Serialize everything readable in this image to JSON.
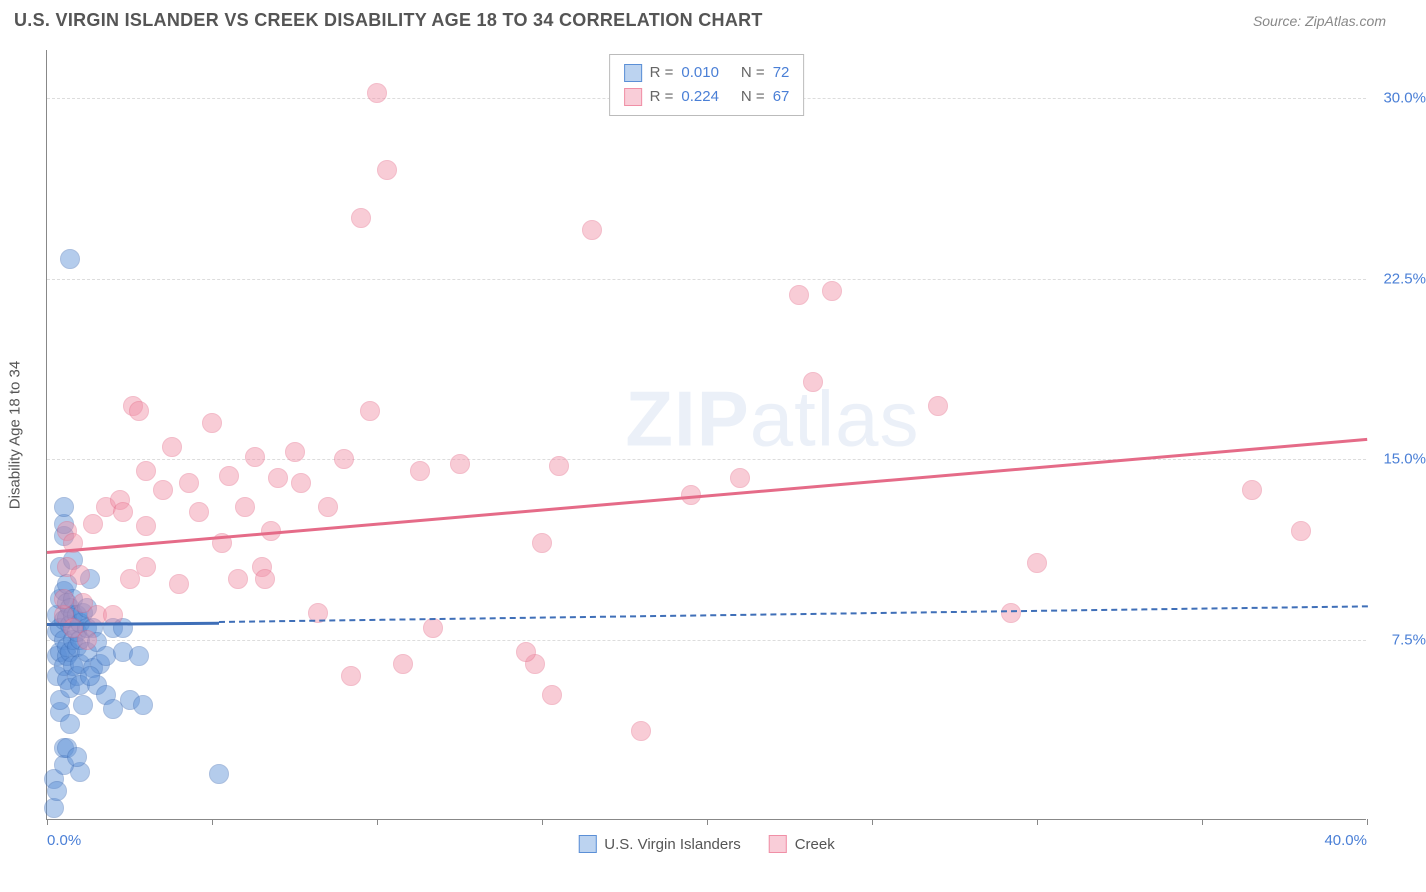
{
  "title": "U.S. VIRGIN ISLANDER VS CREEK DISABILITY AGE 18 TO 34 CORRELATION CHART",
  "source": "Source: ZipAtlas.com",
  "watermark_bold": "ZIP",
  "watermark_light": "atlas",
  "yaxis_title": "Disability Age 18 to 34",
  "chart": {
    "type": "scatter",
    "background_color": "#ffffff",
    "grid_color": "#dddddd",
    "axis_color": "#888888",
    "tick_color": "#4a7fd6",
    "point_radius": 10,
    "point_opacity": 0.45,
    "xlim": [
      0,
      40
    ],
    "ylim": [
      0,
      32
    ],
    "xticks": [
      {
        "v": 0,
        "label": "0.0%",
        "align": "left"
      },
      {
        "v": 40,
        "label": "40.0%",
        "align": "right"
      }
    ],
    "xtick_marks": [
      0,
      5,
      10,
      15,
      20,
      25,
      30,
      35,
      40
    ],
    "yticks": [
      {
        "v": 7.5,
        "label": "7.5%"
      },
      {
        "v": 15.0,
        "label": "15.0%"
      },
      {
        "v": 22.5,
        "label": "22.5%"
      },
      {
        "v": 30.0,
        "label": "30.0%"
      }
    ],
    "series": [
      {
        "name": "U.S. Virgin Islanders",
        "fill_color": "#5b8fd6",
        "stroke_color": "#3f6fb8",
        "swatch_fill": "#bcd3f0",
        "swatch_stroke": "#5b8fd6",
        "legend_r": "0.010",
        "legend_n": "72",
        "trend": {
          "x1": 0,
          "y1": 8.2,
          "x2": 5.2,
          "y2": 8.25,
          "color": "#3f6fb8",
          "dashed": false
        },
        "trend_ext": {
          "x1": 5.2,
          "y1": 8.25,
          "x2": 40,
          "y2": 8.9,
          "color": "#3f6fb8",
          "dashed": true
        },
        "points": [
          [
            0.2,
            0.5
          ],
          [
            0.2,
            1.7
          ],
          [
            0.3,
            6.0
          ],
          [
            0.3,
            6.8
          ],
          [
            0.3,
            7.8
          ],
          [
            0.3,
            8.5
          ],
          [
            0.4,
            4.5
          ],
          [
            0.4,
            5.0
          ],
          [
            0.4,
            7.0
          ],
          [
            0.4,
            8.0
          ],
          [
            0.4,
            9.2
          ],
          [
            0.4,
            10.5
          ],
          [
            0.5,
            3.0
          ],
          [
            0.5,
            6.4
          ],
          [
            0.5,
            7.5
          ],
          [
            0.5,
            8.3
          ],
          [
            0.5,
            9.5
          ],
          [
            0.5,
            11.8
          ],
          [
            0.5,
            12.3
          ],
          [
            0.5,
            13.0
          ],
          [
            0.6,
            5.8
          ],
          [
            0.6,
            6.8
          ],
          [
            0.6,
            7.2
          ],
          [
            0.6,
            8.4
          ],
          [
            0.6,
            9.0
          ],
          [
            0.6,
            9.8
          ],
          [
            0.7,
            4.0
          ],
          [
            0.7,
            5.5
          ],
          [
            0.7,
            7.0
          ],
          [
            0.7,
            8.1
          ],
          [
            0.7,
            8.8
          ],
          [
            0.7,
            23.3
          ],
          [
            0.8,
            6.4
          ],
          [
            0.8,
            7.5
          ],
          [
            0.8,
            8.5
          ],
          [
            0.8,
            9.2
          ],
          [
            0.8,
            10.8
          ],
          [
            0.9,
            6.0
          ],
          [
            0.9,
            7.2
          ],
          [
            0.9,
            7.8
          ],
          [
            0.9,
            8.5
          ],
          [
            1.0,
            5.6
          ],
          [
            1.0,
            6.5
          ],
          [
            1.0,
            7.5
          ],
          [
            1.0,
            8.2
          ],
          [
            1.1,
            8.6
          ],
          [
            1.1,
            4.8
          ],
          [
            1.2,
            7.0
          ],
          [
            1.2,
            8.0
          ],
          [
            1.2,
            8.8
          ],
          [
            1.3,
            10.0
          ],
          [
            1.4,
            6.3
          ],
          [
            1.4,
            8.0
          ],
          [
            1.5,
            5.6
          ],
          [
            1.5,
            7.4
          ],
          [
            1.6,
            6.5
          ],
          [
            1.8,
            5.2
          ],
          [
            1.8,
            6.8
          ],
          [
            2.0,
            4.6
          ],
          [
            2.0,
            8.0
          ],
          [
            2.3,
            8.0
          ],
          [
            2.3,
            7.0
          ],
          [
            2.5,
            5.0
          ],
          [
            2.8,
            6.8
          ],
          [
            2.9,
            4.8
          ],
          [
            1.0,
            2.0
          ],
          [
            5.2,
            1.9
          ],
          [
            0.3,
            1.2
          ],
          [
            0.5,
            2.3
          ],
          [
            0.6,
            3.0
          ],
          [
            0.9,
            2.6
          ],
          [
            1.3,
            6.0
          ]
        ]
      },
      {
        "name": "Creek",
        "fill_color": "#f08fa6",
        "stroke_color": "#e56b88",
        "swatch_fill": "#f9cdd8",
        "swatch_stroke": "#f08fa6",
        "legend_r": "0.224",
        "legend_n": "67",
        "trend": {
          "x1": 0,
          "y1": 11.2,
          "x2": 40,
          "y2": 15.9,
          "color": "#e56b88",
          "dashed": false
        },
        "points": [
          [
            0.5,
            8.5
          ],
          [
            0.5,
            9.2
          ],
          [
            0.6,
            10.5
          ],
          [
            0.6,
            12.0
          ],
          [
            0.8,
            8.0
          ],
          [
            0.8,
            11.5
          ],
          [
            1.0,
            10.2
          ],
          [
            1.1,
            9.0
          ],
          [
            1.2,
            7.5
          ],
          [
            1.4,
            12.3
          ],
          [
            1.5,
            8.5
          ],
          [
            1.8,
            13.0
          ],
          [
            2.0,
            8.5
          ],
          [
            2.2,
            13.3
          ],
          [
            2.3,
            12.8
          ],
          [
            2.5,
            10.0
          ],
          [
            2.6,
            17.2
          ],
          [
            2.8,
            17.0
          ],
          [
            3.0,
            14.5
          ],
          [
            3.0,
            12.2
          ],
          [
            3.0,
            10.5
          ],
          [
            3.5,
            13.7
          ],
          [
            3.8,
            15.5
          ],
          [
            4.0,
            9.8
          ],
          [
            4.3,
            14.0
          ],
          [
            4.6,
            12.8
          ],
          [
            5.0,
            16.5
          ],
          [
            5.3,
            11.5
          ],
          [
            5.5,
            14.3
          ],
          [
            5.8,
            10.0
          ],
          [
            6.0,
            13.0
          ],
          [
            6.3,
            15.1
          ],
          [
            6.5,
            10.5
          ],
          [
            6.6,
            10.0
          ],
          [
            6.8,
            12.0
          ],
          [
            7.0,
            14.2
          ],
          [
            7.5,
            15.3
          ],
          [
            7.7,
            14.0
          ],
          [
            8.2,
            8.6
          ],
          [
            8.5,
            13.0
          ],
          [
            9.0,
            15.0
          ],
          [
            9.2,
            6.0
          ],
          [
            9.5,
            25.0
          ],
          [
            10.0,
            30.2
          ],
          [
            10.3,
            27.0
          ],
          [
            10.8,
            6.5
          ],
          [
            11.3,
            14.5
          ],
          [
            11.7,
            8.0
          ],
          [
            12.5,
            14.8
          ],
          [
            14.8,
            6.5
          ],
          [
            15.0,
            11.5
          ],
          [
            15.3,
            5.2
          ],
          [
            15.5,
            14.7
          ],
          [
            16.5,
            24.5
          ],
          [
            18.0,
            3.7
          ],
          [
            19.5,
            13.5
          ],
          [
            21.0,
            14.2
          ],
          [
            22.8,
            21.8
          ],
          [
            23.2,
            18.2
          ],
          [
            23.8,
            22.0
          ],
          [
            27.0,
            17.2
          ],
          [
            29.2,
            8.6
          ],
          [
            30.0,
            10.7
          ],
          [
            36.5,
            13.7
          ],
          [
            38.0,
            12.0
          ],
          [
            9.8,
            17.0
          ],
          [
            14.5,
            7.0
          ]
        ]
      }
    ]
  },
  "legend_bottom": [
    {
      "label": "U.S. Virgin Islanders",
      "fill": "#bcd3f0",
      "stroke": "#5b8fd6"
    },
    {
      "label": "Creek",
      "fill": "#f9cdd8",
      "stroke": "#f08fa6"
    }
  ]
}
